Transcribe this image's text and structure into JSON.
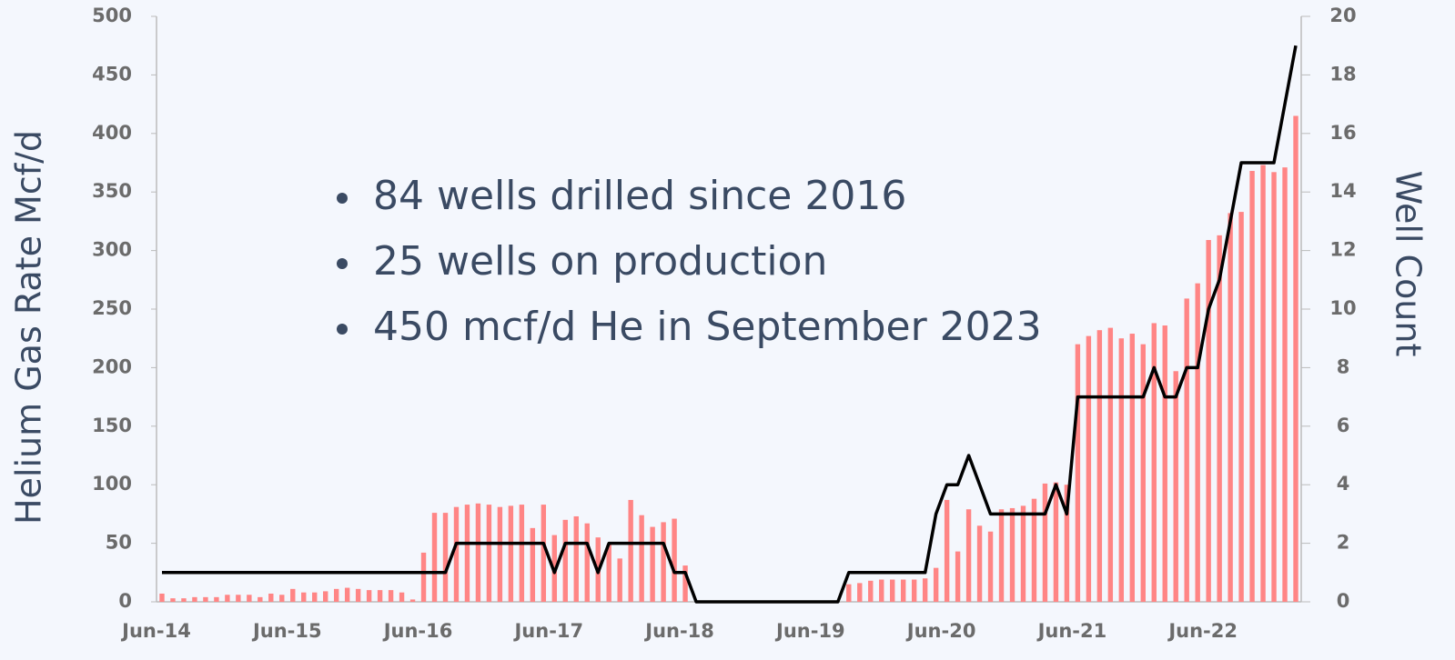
{
  "chart_data": {
    "type": "bar-line",
    "y_label": "Helium Gas Rate Mcf/d",
    "y2_label": "Well Count",
    "annotations": [
      "84 wells drilled since 2016",
      "25 wells on production",
      "450 mcf/d He in September 2023"
    ],
    "categories": [
      "Jun-14",
      null,
      null,
      null,
      null,
      null,
      null,
      null,
      null,
      null,
      null,
      null,
      "Jun-15",
      null,
      null,
      null,
      null,
      null,
      null,
      null,
      null,
      null,
      null,
      null,
      "Jun-16",
      null,
      null,
      null,
      null,
      null,
      null,
      null,
      null,
      null,
      null,
      null,
      "Jun-17",
      null,
      null,
      null,
      null,
      null,
      null,
      null,
      null,
      null,
      null,
      null,
      "Jun-18",
      null,
      null,
      null,
      null,
      null,
      null,
      null,
      null,
      null,
      null,
      null,
      "Jun-19",
      null,
      null,
      null,
      null,
      null,
      null,
      null,
      null,
      null,
      null,
      null,
      "Jun-20",
      null,
      null,
      null,
      null,
      null,
      null,
      null,
      null,
      null,
      null,
      null,
      "Jun-21",
      null,
      null,
      null,
      null,
      null,
      null,
      null,
      null,
      null,
      null,
      null,
      "Jun-22",
      null,
      null,
      null,
      null,
      null,
      null,
      null,
      null
    ],
    "series": [
      {
        "type": "bar",
        "color": "#ff8585",
        "values": [
          7,
          3,
          3,
          4,
          4,
          4,
          6,
          6,
          6,
          4,
          7,
          6,
          11,
          8,
          8,
          9,
          11,
          12,
          11,
          10,
          10,
          10,
          8,
          2,
          42,
          76,
          76,
          81,
          83,
          84,
          83,
          81,
          82,
          83,
          63,
          83,
          57,
          70,
          73,
          67,
          55,
          49,
          37,
          87,
          74,
          64,
          68,
          71,
          31,
          0,
          0,
          0,
          0,
          0,
          0,
          0,
          0,
          0,
          0,
          0,
          0,
          0,
          0,
          15,
          16,
          18,
          19,
          19,
          19,
          19,
          20,
          29,
          87,
          43,
          79,
          65,
          60,
          79,
          80,
          82,
          88,
          101,
          102,
          100,
          220,
          227,
          232,
          234,
          225,
          229,
          220,
          238,
          236,
          197,
          259,
          272,
          309,
          313,
          332,
          333,
          368,
          373,
          367,
          371,
          415
        ]
      },
      {
        "type": "line",
        "axis": "y2",
        "color": "#000000",
        "values": [
          1,
          1,
          1,
          1,
          1,
          1,
          1,
          1,
          1,
          1,
          1,
          1,
          1,
          1,
          1,
          1,
          1,
          1,
          1,
          1,
          1,
          1,
          1,
          1,
          1,
          1,
          1,
          2,
          2,
          2,
          2,
          2,
          2,
          2,
          2,
          2,
          1,
          2,
          2,
          2,
          1,
          2,
          2,
          2,
          2,
          2,
          2,
          1,
          1,
          0,
          0,
          0,
          0,
          0,
          0,
          0,
          0,
          0,
          0,
          0,
          0,
          0,
          0,
          1,
          1,
          1,
          1,
          1,
          1,
          1,
          1,
          3,
          4,
          4,
          5,
          4,
          3,
          3,
          3,
          3,
          3,
          3,
          4,
          3,
          7,
          7,
          7,
          7,
          7,
          7,
          7,
          8,
          7,
          7,
          8,
          8,
          10,
          11,
          13,
          15,
          15,
          15,
          15,
          17,
          19
        ]
      }
    ],
    "ylim": [
      0,
      500
    ],
    "yticks": [
      0,
      50,
      100,
      150,
      200,
      250,
      300,
      350,
      400,
      450,
      500
    ],
    "y2lim": [
      0,
      20
    ],
    "y2ticks": [
      0,
      2,
      4,
      6,
      8,
      10,
      12,
      14,
      16,
      18,
      20
    ]
  }
}
